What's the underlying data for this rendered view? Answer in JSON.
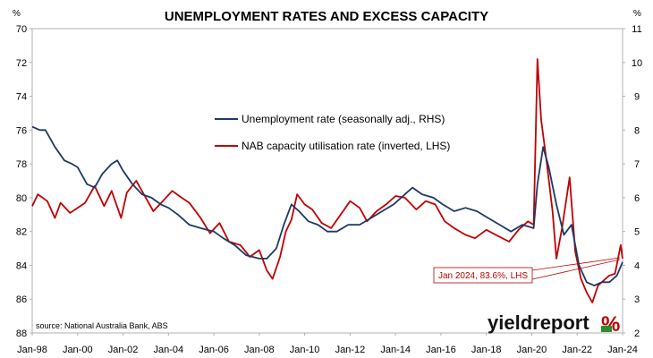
{
  "chart_data": {
    "type": "line",
    "title": "UNEMPLOYMENT RATES AND EXCESS CAPACITY",
    "left_unit": "%",
    "right_unit": "%",
    "x_range": [
      "Jan-98",
      "Jan-24"
    ],
    "x_ticks": [
      "Jan-98",
      "Jan-00",
      "Jan-02",
      "Jan-04",
      "Jan-06",
      "Jan-08",
      "Jan-10",
      "Jan-12",
      "Jan-14",
      "Jan-16",
      "Jan-18",
      "Jan-20",
      "Jan-22",
      "Jan-24"
    ],
    "y_left": {
      "min": 70,
      "max": 88,
      "inverted": true,
      "ticks": [
        70,
        72,
        74,
        76,
        78,
        80,
        82,
        84,
        86,
        88
      ]
    },
    "y_right": {
      "min": 2,
      "max": 11,
      "inverted": false,
      "ticks": [
        11,
        10,
        9,
        8,
        7,
        6,
        5,
        4,
        3,
        2
      ]
    },
    "grid": false,
    "legend_position": "top-center",
    "series": [
      {
        "name": "Unemployment rate (seasonally adj., RHS)",
        "axis": "right",
        "color": "#1f3864",
        "points": [
          [
            "1998-01",
            8.1
          ],
          [
            "1998-05",
            8.0
          ],
          [
            "1998-08",
            8.0
          ],
          [
            "1999-01",
            7.5
          ],
          [
            "1999-06",
            7.1
          ],
          [
            "1999-10",
            7.0
          ],
          [
            "2000-01",
            6.9
          ],
          [
            "2000-06",
            6.4
          ],
          [
            "2000-10",
            6.3
          ],
          [
            "2001-02",
            6.7
          ],
          [
            "2001-07",
            7.0
          ],
          [
            "2001-10",
            7.1
          ],
          [
            "2002-01",
            6.8
          ],
          [
            "2002-06",
            6.4
          ],
          [
            "2002-11",
            6.1
          ],
          [
            "2003-04",
            6.0
          ],
          [
            "2003-09",
            5.8
          ],
          [
            "2004-01",
            5.7
          ],
          [
            "2004-06",
            5.5
          ],
          [
            "2004-12",
            5.2
          ],
          [
            "2005-06",
            5.1
          ],
          [
            "2006-01",
            5.0
          ],
          [
            "2006-06",
            4.8
          ],
          [
            "2006-12",
            4.6
          ],
          [
            "2007-06",
            4.3
          ],
          [
            "2008-01",
            4.2
          ],
          [
            "2008-05",
            4.2
          ],
          [
            "2008-10",
            4.5
          ],
          [
            "2009-02",
            5.2
          ],
          [
            "2009-06",
            5.8
          ],
          [
            "2009-10",
            5.6
          ],
          [
            "2010-03",
            5.3
          ],
          [
            "2010-08",
            5.2
          ],
          [
            "2011-01",
            5.0
          ],
          [
            "2011-06",
            5.0
          ],
          [
            "2011-12",
            5.2
          ],
          [
            "2012-06",
            5.2
          ],
          [
            "2012-12",
            5.4
          ],
          [
            "2013-06",
            5.6
          ],
          [
            "2013-12",
            5.8
          ],
          [
            "2014-06",
            6.1
          ],
          [
            "2014-10",
            6.3
          ],
          [
            "2015-03",
            6.1
          ],
          [
            "2015-09",
            6.0
          ],
          [
            "2016-02",
            5.8
          ],
          [
            "2016-08",
            5.6
          ],
          [
            "2017-02",
            5.7
          ],
          [
            "2017-08",
            5.6
          ],
          [
            "2018-02",
            5.4
          ],
          [
            "2018-08",
            5.2
          ],
          [
            "2019-02",
            5.0
          ],
          [
            "2019-08",
            5.2
          ],
          [
            "2020-02",
            5.1
          ],
          [
            "2020-04",
            6.4
          ],
          [
            "2020-07",
            7.5
          ],
          [
            "2020-10",
            6.9
          ],
          [
            "2021-02",
            5.8
          ],
          [
            "2021-06",
            4.9
          ],
          [
            "2021-10",
            5.2
          ],
          [
            "2022-02",
            4.0
          ],
          [
            "2022-06",
            3.5
          ],
          [
            "2022-10",
            3.4
          ],
          [
            "2023-02",
            3.5
          ],
          [
            "2023-06",
            3.5
          ],
          [
            "2023-10",
            3.7
          ],
          [
            "2024-01",
            4.1
          ]
        ]
      },
      {
        "name": "NAB capacity utilisation rate (inverted, LHS)",
        "axis": "left",
        "color": "#c00000",
        "points": [
          [
            "1998-01",
            80.5
          ],
          [
            "1998-04",
            79.8
          ],
          [
            "1998-09",
            80.2
          ],
          [
            "1999-01",
            81.2
          ],
          [
            "1999-04",
            80.3
          ],
          [
            "1999-09",
            80.9
          ],
          [
            "2000-01",
            80.6
          ],
          [
            "2000-05",
            80.3
          ],
          [
            "2000-10",
            79.3
          ],
          [
            "2001-03",
            80.5
          ],
          [
            "2001-07",
            79.6
          ],
          [
            "2001-12",
            81.2
          ],
          [
            "2002-03",
            79.7
          ],
          [
            "2002-08",
            79.0
          ],
          [
            "2002-12",
            79.8
          ],
          [
            "2003-05",
            80.8
          ],
          [
            "2003-10",
            80.2
          ],
          [
            "2004-03",
            79.6
          ],
          [
            "2004-08",
            80.0
          ],
          [
            "2004-12",
            80.3
          ],
          [
            "2005-06",
            81.2
          ],
          [
            "2005-11",
            82.1
          ],
          [
            "2006-04",
            81.5
          ],
          [
            "2006-09",
            82.6
          ],
          [
            "2007-03",
            82.8
          ],
          [
            "2007-08",
            83.5
          ],
          [
            "2008-01",
            83.1
          ],
          [
            "2008-05",
            84.3
          ],
          [
            "2008-08",
            84.8
          ],
          [
            "2008-12",
            83.5
          ],
          [
            "2009-03",
            82.0
          ],
          [
            "2009-06",
            81.3
          ],
          [
            "2009-09",
            79.8
          ],
          [
            "2010-01",
            80.4
          ],
          [
            "2010-05",
            80.7
          ],
          [
            "2010-10",
            81.5
          ],
          [
            "2011-03",
            81.8
          ],
          [
            "2011-08",
            81.0
          ],
          [
            "2012-01",
            80.2
          ],
          [
            "2012-06",
            80.6
          ],
          [
            "2012-10",
            81.4
          ],
          [
            "2013-03",
            80.8
          ],
          [
            "2013-08",
            80.4
          ],
          [
            "2014-01",
            79.9
          ],
          [
            "2014-06",
            80.0
          ],
          [
            "2014-12",
            80.7
          ],
          [
            "2015-05",
            80.2
          ],
          [
            "2015-10",
            80.4
          ],
          [
            "2016-03",
            81.4
          ],
          [
            "2016-08",
            81.8
          ],
          [
            "2017-02",
            82.2
          ],
          [
            "2017-07",
            82.4
          ],
          [
            "2018-01",
            81.9
          ],
          [
            "2018-06",
            82.2
          ],
          [
            "2019-01",
            82.6
          ],
          [
            "2019-06",
            81.9
          ],
          [
            "2019-11",
            81.4
          ],
          [
            "2020-02",
            81.6
          ],
          [
            "2020-04",
            71.8
          ],
          [
            "2020-06",
            75.4
          ],
          [
            "2020-09",
            78.0
          ],
          [
            "2020-12",
            80.8
          ],
          [
            "2021-02",
            83.6
          ],
          [
            "2021-05",
            81.8
          ],
          [
            "2021-09",
            78.8
          ],
          [
            "2021-12",
            83.2
          ],
          [
            "2022-03",
            84.8
          ],
          [
            "2022-06",
            85.6
          ],
          [
            "2022-09",
            86.2
          ],
          [
            "2022-12",
            85.2
          ],
          [
            "2023-03",
            84.9
          ],
          [
            "2023-06",
            84.6
          ],
          [
            "2023-09",
            84.5
          ],
          [
            "2023-12",
            82.8
          ],
          [
            "2024-01",
            83.6
          ]
        ]
      }
    ],
    "annotations": [
      "Jan 2024, 83.6%, LHS"
    ],
    "source": "source: National Australia Bank, ABS"
  },
  "branding": {
    "name": "yieldreport",
    "symbol": "%",
    "red_color": "#c00000",
    "green_color": "#2e8b2e"
  }
}
